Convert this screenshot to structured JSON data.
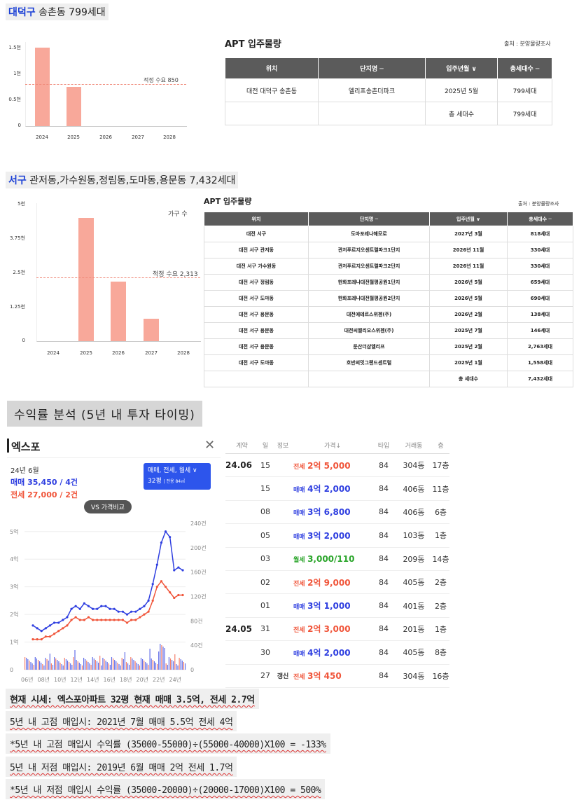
{
  "section1": {
    "district": "대덕구",
    "rest": "송촌동 799세대",
    "chart": {
      "y_ticks": [
        "1.5천",
        "1천",
        "0.5천",
        "0"
      ],
      "x_ticks": [
        "2024",
        "2025",
        "2026",
        "2027",
        "2028"
      ],
      "demand_label": "적정 수요 850"
    },
    "table": {
      "title": "APT 입주물량",
      "source": "출처 : 분양물량조사",
      "headers": [
        "위치",
        "단지명 ─",
        "입주년월 ∨",
        "총세대수 ─"
      ],
      "rows": [
        [
          "대전 대덕구 송촌동",
          "엘리프송촌더파크",
          "2025년 5월",
          "799세대"
        ],
        [
          "",
          "",
          "총 세대수",
          "799세대"
        ]
      ]
    }
  },
  "section2": {
    "district": "서구",
    "rest": "관저동,가수원동,정림동,도마동,용문동 7,432세대",
    "chart": {
      "y_ticks": [
        "5천",
        "3.75천",
        "2.5천",
        "1.25천",
        "0"
      ],
      "x_ticks": [
        "2024",
        "2025",
        "2026",
        "2027",
        "2028"
      ],
      "series_label": "가구 수",
      "demand_label": "적정 수요 2,313"
    },
    "table": {
      "title": "APT 입주물량",
      "source": "출처 : 분양물량조사",
      "headers": [
        "위치",
        "단지명 ─",
        "입주년월 ∨",
        "총세대수 ─"
      ],
      "rows": [
        [
          "대전 서구",
          "도마포레나해모로",
          "2027년 3월",
          "818세대"
        ],
        [
          "대전 서구 관저동",
          "관저푸르지오센트럴파크1단지",
          "2026년 11월",
          "330세대"
        ],
        [
          "대전 서구 가수원동",
          "관저푸르지오센트럴파크2단지",
          "2026년 11월",
          "330세대"
        ],
        [
          "대전 서구 정림동",
          "한화포레나대전월평공원1단지",
          "2026년 5월",
          "659세대"
        ],
        [
          "대전 서구 도마동",
          "한화포레나대전월평공원2단지",
          "2026년 5월",
          "690세대"
        ],
        [
          "대전 서구 용문동",
          "대전에테르스위첸(주)",
          "2026년 2월",
          "138세대"
        ],
        [
          "대전 서구 용문동",
          "대전씨엘리오스위첸(주)",
          "2025년 7월",
          "146세대"
        ],
        [
          "대전 서구 용문동",
          "둔산더샵엘리프",
          "2025년 2월",
          "2,763세대"
        ],
        [
          "대전 서구 도마동",
          "호반써밋그랜드센트럴",
          "2025년 1월",
          "1,558세대"
        ],
        [
          "",
          "",
          "총 세대수",
          "7,432세대"
        ]
      ]
    }
  },
  "chart_data": [
    {
      "type": "bar",
      "categories": [
        "2024",
        "2025",
        "2026",
        "2027",
        "2028"
      ],
      "values": [
        1580,
        799,
        0,
        0,
        0
      ],
      "ylim": [
        0,
        1700
      ],
      "reference_line": {
        "value": 850,
        "label": "적정 수요 850"
      }
    },
    {
      "type": "bar",
      "categories": [
        "2024",
        "2025",
        "2026",
        "2027",
        "2028"
      ],
      "series": [
        {
          "name": "가구 수",
          "values": [
            0,
            4467,
            2147,
            818,
            0
          ]
        }
      ],
      "ylim": [
        0,
        5000
      ],
      "reference_line": {
        "value": 2313,
        "label": "적정 수요 2,313"
      }
    }
  ],
  "roi_heading": "수익률 분석 (5년 내 투자 타이밍)",
  "panel": {
    "title": "엑스포",
    "close_icon": "close-icon",
    "date": "24년 6월",
    "sale_summary": "매매 35,450 / 4건",
    "jeonse_summary": "전세 27,000 / 2건",
    "filter_label": "매매, 전세, 월세 ∨",
    "size_label": "32평",
    "size_sub": "| 전용 84㎡",
    "compare_button": "VS 가격비교",
    "chart_left_ticks": [
      "5억",
      "4억",
      "3억",
      "2억",
      "1억",
      "0"
    ],
    "chart_right_ticks": [
      "240건",
      "200건",
      "160건",
      "120건",
      "80건",
      "40건",
      "0"
    ],
    "chart_x_ticks": [
      "06년",
      "08년",
      "10년",
      "12년",
      "14년",
      "16년",
      "18년",
      "20년",
      "22년",
      "24년"
    ],
    "colors": {
      "sale": "#2f3fe0",
      "jeonse": "#f0553a",
      "monthly": "#2aa52a"
    }
  },
  "trades": {
    "headers": [
      "계약",
      "일",
      "정보",
      "가격↓",
      "타입",
      "거래동",
      "층"
    ],
    "rows": [
      {
        "month": "24.06",
        "day": "15",
        "info": "",
        "kind": "전세",
        "kind_cls": "k-jeon",
        "price": "2억 5,000",
        "price_cls": "p-jeon",
        "type": "84",
        "dong": "304동",
        "floor": "17층"
      },
      {
        "month": "",
        "day": "15",
        "info": "",
        "kind": "매매",
        "kind_cls": "k-sale",
        "price": "4억 2,000",
        "price_cls": "p-sale",
        "type": "84",
        "dong": "406동",
        "floor": "11층"
      },
      {
        "month": "",
        "day": "08",
        "info": "",
        "kind": "매매",
        "kind_cls": "k-sale",
        "price": "3억 6,800",
        "price_cls": "p-sale",
        "type": "84",
        "dong": "406동",
        "floor": "6층"
      },
      {
        "month": "",
        "day": "05",
        "info": "",
        "kind": "매매",
        "kind_cls": "k-sale",
        "price": "3억 2,000",
        "price_cls": "p-sale",
        "type": "84",
        "dong": "103동",
        "floor": "1층"
      },
      {
        "month": "",
        "day": "03",
        "info": "",
        "kind": "월세",
        "kind_cls": "k-wol",
        "price": "3,000/110",
        "price_cls": "p-wol",
        "type": "84",
        "dong": "209동",
        "floor": "14층"
      },
      {
        "month": "",
        "day": "02",
        "info": "",
        "kind": "전세",
        "kind_cls": "k-jeon",
        "price": "2억 9,000",
        "price_cls": "p-jeon",
        "type": "84",
        "dong": "405동",
        "floor": "2층"
      },
      {
        "month": "",
        "day": "01",
        "info": "",
        "kind": "매매",
        "kind_cls": "k-sale",
        "price": "3억 1,000",
        "price_cls": "p-sale",
        "type": "84",
        "dong": "401동",
        "floor": "2층"
      },
      {
        "month": "24.05",
        "day": "31",
        "info": "",
        "kind": "전세",
        "kind_cls": "k-jeon",
        "price": "2억 3,000",
        "price_cls": "p-jeon",
        "type": "84",
        "dong": "201동",
        "floor": "1층"
      },
      {
        "month": "",
        "day": "30",
        "info": "",
        "kind": "매매",
        "kind_cls": "k-sale",
        "price": "4억 2,000",
        "price_cls": "p-sale",
        "type": "84",
        "dong": "405동",
        "floor": "8층"
      },
      {
        "month": "",
        "day": "27",
        "info": "갱신",
        "kind": "전세",
        "kind_cls": "k-jeon",
        "price": "3억 450",
        "price_cls": "p-jeon",
        "type": "84",
        "dong": "304동",
        "floor": "16층"
      }
    ]
  },
  "notes": {
    "line1": "현재 시세: 엑스포아파트 32평 현재 매매 3.5억, 전세 2.7억",
    "line2": "5년 내 고점 매입시: 2021년 7월 매매 5.5억 전세 4억",
    "line3": "*5년 내 고점 매입시 수익률 (35000-55000)÷(55000-40000)X100 = -133%",
    "line4": "5년 내 저점 매입시: 2019년 6월 매매 2억 전세 1.7억",
    "line5": "*5년 내 저점 매입시 수익률 (35000-20000)÷(20000-17000)X100 = 500%"
  }
}
